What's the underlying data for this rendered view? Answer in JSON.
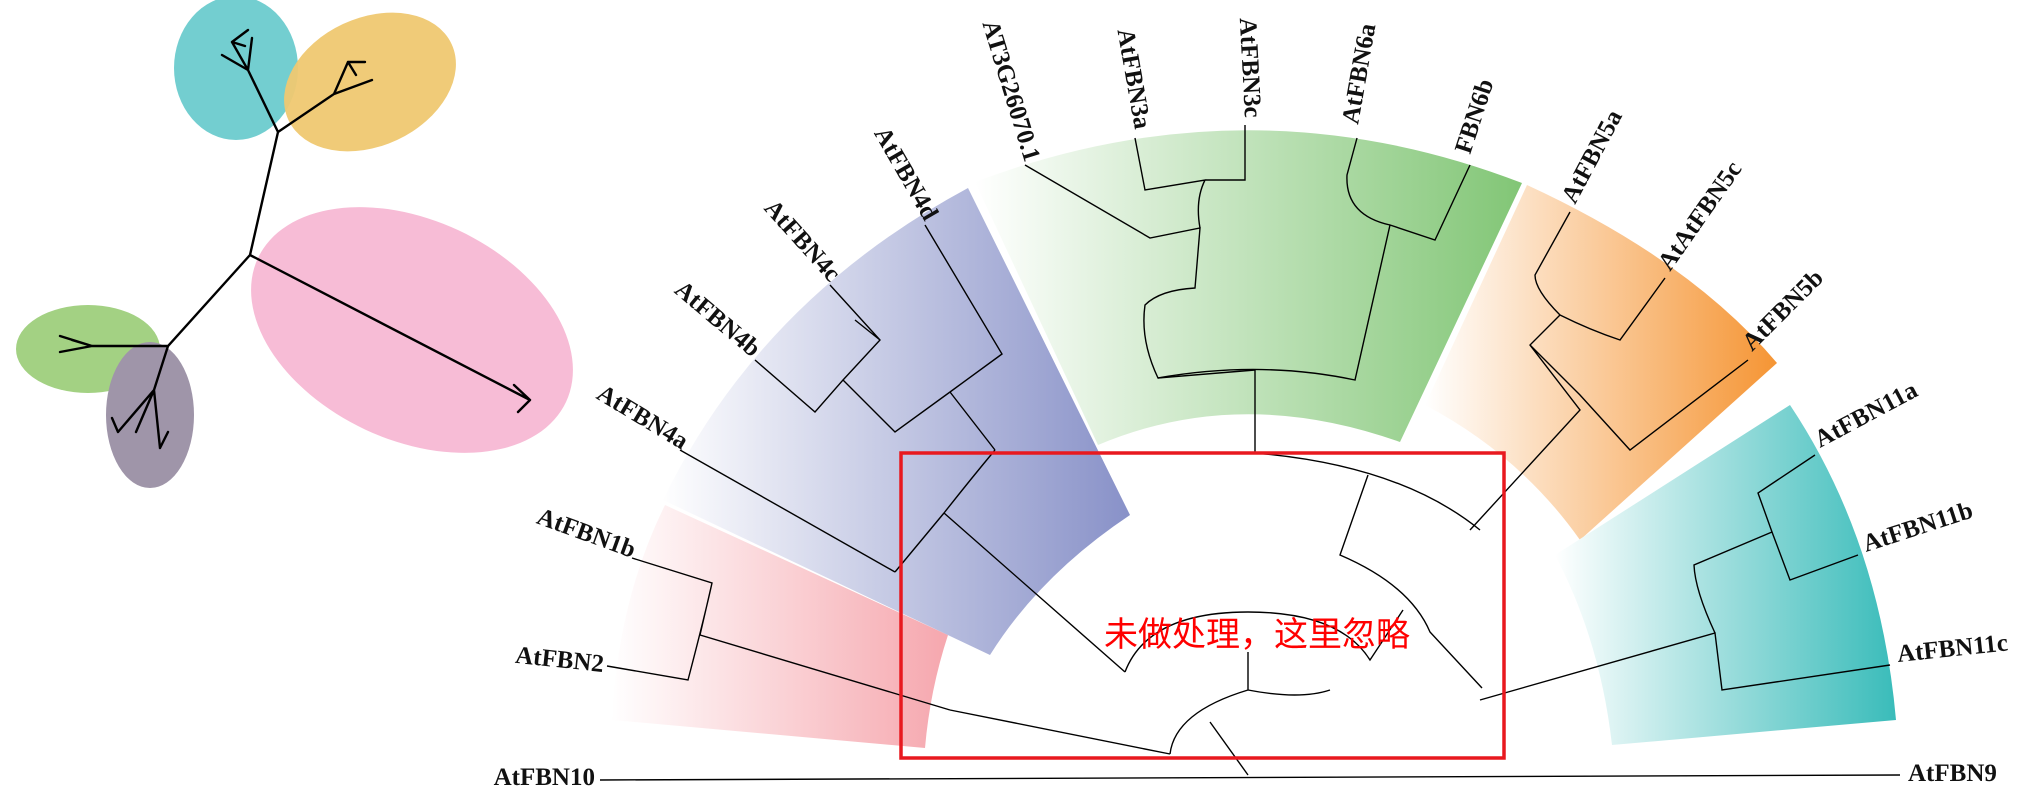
{
  "leaves": {
    "atfbn10": "AtFBN10",
    "atfbn2": "AtFBN2",
    "atfbn1b": "AtFBN1b",
    "atfbn4a": "AtFBN4a",
    "atfbn4b": "AtFBN4b",
    "atfbn4c": "AtFBN4c",
    "atfbn4d": "AtFBN4d",
    "at3g26070": "AT3G26070.1",
    "atfbn3a": "AtFBN3a",
    "atfbn3c": "AtFBN3c",
    "atfbn6a": "AtFBN6a",
    "fbn6b": "FBN6b",
    "atfbn5a": "AtFBN5a",
    "atatfbn5c": "AtAtFBN5c",
    "atfbn5b": "AtFBN5b",
    "atfbn11a": "AtFBN11a",
    "atfbn11b": "AtFBN11b",
    "atfbn11c": "AtFBN11c",
    "atfbn9": "AtFBN9"
  },
  "annotation": {
    "text": "未做处理，这里忽略",
    "color": "#ff0000"
  },
  "clade_colors": {
    "pink": "#f7b3b8",
    "purple": "#8d96cb",
    "green": "#86c77c",
    "orange": "#f5963a",
    "teal": "#3dbdbc"
  },
  "unrooted_tree_colors": {
    "teal": "#6ccbcd",
    "yellow": "#efc871",
    "pink": "#f7bcd6",
    "green": "#a3d183",
    "gray": "#9f95a9"
  }
}
